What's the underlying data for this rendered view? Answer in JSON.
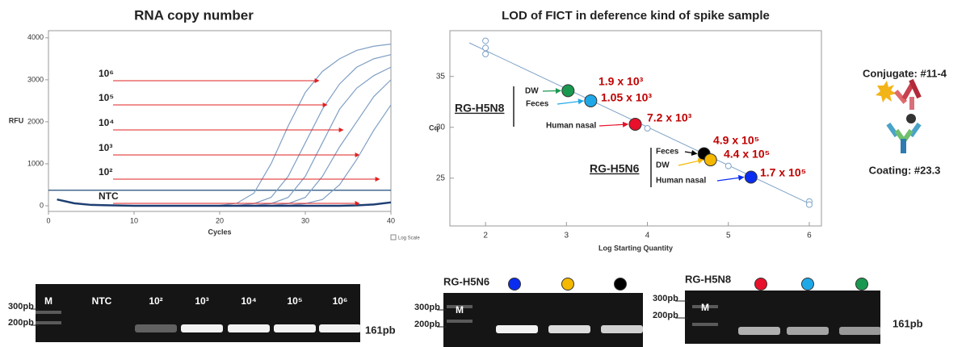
{
  "chart_data": [
    {
      "type": "line",
      "title": "RNA copy number",
      "x_label": "Cycles",
      "y_label": "RFU",
      "x": [
        1,
        3,
        5,
        10,
        15,
        20,
        22,
        24,
        26,
        28,
        30,
        32,
        34,
        36,
        38,
        40
      ],
      "series": [
        {
          "name": "10⁶",
          "color": "#7f9fc4",
          "values": [
            150,
            60,
            20,
            0,
            0,
            10,
            60,
            300,
            1000,
            1900,
            2700,
            3200,
            3500,
            3700,
            3800,
            3850
          ]
        },
        {
          "name": "10⁵",
          "color": "#7f9fc4",
          "values": [
            150,
            60,
            20,
            0,
            0,
            0,
            10,
            50,
            200,
            700,
            1500,
            2300,
            2900,
            3300,
            3500,
            3600
          ]
        },
        {
          "name": "10⁴",
          "color": "#7f9fc4",
          "values": [
            150,
            60,
            20,
            0,
            0,
            0,
            0,
            10,
            50,
            200,
            700,
            1500,
            2300,
            2800,
            3100,
            3300
          ]
        },
        {
          "name": "10³",
          "color": "#7f9fc4",
          "values": [
            150,
            60,
            20,
            0,
            0,
            0,
            0,
            0,
            10,
            50,
            200,
            700,
            1400,
            2000,
            2600,
            3000
          ]
        },
        {
          "name": "10²",
          "color": "#7f9fc4",
          "values": [
            150,
            60,
            20,
            0,
            0,
            0,
            0,
            0,
            0,
            10,
            50,
            150,
            500,
            1100,
            1800,
            2400
          ]
        },
        {
          "name": "NTC",
          "color": "#1f3f73",
          "values": [
            150,
            60,
            20,
            0,
            0,
            0,
            0,
            0,
            0,
            0,
            0,
            0,
            0,
            10,
            30,
            80
          ]
        }
      ],
      "threshold": 370,
      "threshold_color": "#1f4e79",
      "arrow_color": "#e02020",
      "xlim": [
        0,
        40
      ],
      "xticks": [
        0,
        10,
        20,
        30,
        40
      ],
      "ylim": [
        -135,
        4170
      ],
      "yticks": [
        0,
        1000,
        2000,
        3000,
        4000
      ],
      "checkbox_label": "Log Scale"
    },
    {
      "type": "scatter",
      "title": "LOD of FICT in deference kind of spike sample",
      "x_label": "Log Starting Quantity",
      "y_label": "Cq",
      "x": [
        2,
        2,
        2,
        4,
        5,
        6,
        6
      ],
      "values": [
        38.5,
        37.8,
        37.2,
        29.9,
        26.2,
        22.7,
        22.4
      ],
      "color": "#7fa3c8",
      "fit": {
        "x": [
          1.8,
          6
        ],
        "values": [
          38.3,
          22.5
        ]
      },
      "xlim": [
        1.56,
        6.15
      ],
      "xticks": [
        2,
        3,
        4,
        5,
        6
      ],
      "ylim": [
        20.3,
        39.5
      ],
      "yticks": [
        25,
        30,
        35
      ],
      "label_color": "#c00000",
      "groups": [
        {
          "name": "RG-H5N8",
          "samples": [
            {
              "name": "DW",
              "color": "#1a9850",
              "x": 3.02,
              "y": 33.6,
              "label": "1.9 x 10³"
            },
            {
              "name": "Feces",
              "color": "#1fa8e8",
              "x": 3.3,
              "y": 32.6,
              "label": "1.05 x 10³"
            },
            {
              "name": "Human nasal",
              "color": "#e8102a",
              "x": 3.85,
              "y": 30.3,
              "label": "7.2 x 10³"
            }
          ]
        },
        {
          "name": "RG-H5N6",
          "samples": [
            {
              "name": "Feces",
              "color": "#000000",
              "x": 4.7,
              "y": 27.4,
              "label": "4.9 x 10⁵"
            },
            {
              "name": "DW",
              "color": "#f5b800",
              "x": 4.78,
              "y": 26.8,
              "label": "4.4 x 10⁵"
            },
            {
              "name": "Human nasal",
              "color": "#0a2cf0",
              "x": 5.28,
              "y": 25.1,
              "label": "1.7 x 10⁵"
            }
          ]
        }
      ]
    }
  ],
  "diagram": {
    "conjugate_label": "Conjugate: #11-4",
    "coating_label": "Coating: #23.3"
  },
  "gels": [
    {
      "lanes": [
        "M",
        "NTC",
        "10²",
        "10³",
        "10⁴",
        "10⁵",
        "10⁶"
      ],
      "markers": [
        "300pb",
        "200pb"
      ],
      "band_label": "161pb"
    },
    {
      "title": "RG-H5N6",
      "lanes": [
        "M"
      ],
      "lane_colors": [
        "#0a2cf0",
        "#f5b800",
        "#000000"
      ],
      "markers": [
        "300pb",
        "200pb"
      ]
    },
    {
      "title": "RG-H5N8",
      "lanes": [
        "M"
      ],
      "lane_colors": [
        "#e8102a",
        "#1fa8e8",
        "#1a9850"
      ],
      "markers": [
        "300pb",
        "200pb"
      ],
      "band_label": "161pb"
    }
  ]
}
